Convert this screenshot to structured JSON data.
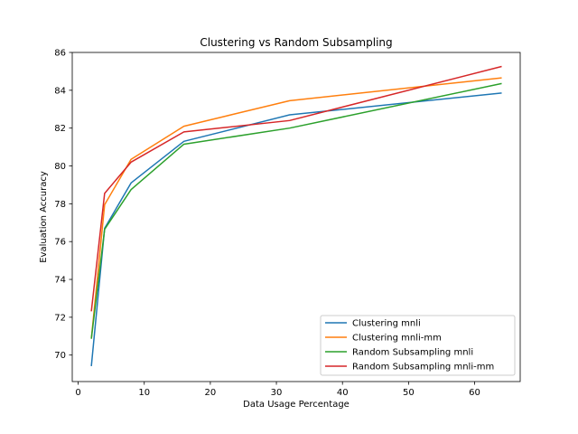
{
  "chart_data": {
    "type": "line",
    "title": "Clustering vs Random Subsampling",
    "xlabel": "Data Usage Percentage",
    "ylabel": "Evaluation Accuracy",
    "xlim": [
      -0.9,
      66.9
    ],
    "ylim": [
      68.6,
      86
    ],
    "xticks": [
      0,
      10,
      20,
      30,
      40,
      50,
      60
    ],
    "yticks": [
      70,
      72,
      74,
      76,
      78,
      80,
      82,
      84,
      86
    ],
    "grid": false,
    "legend_position": "lower right",
    "x": [
      2,
      4,
      8,
      16,
      32,
      64
    ],
    "series": [
      {
        "name": "Clustering mnli",
        "color": "#1f77b4",
        "values": [
          69.45,
          76.7,
          79.1,
          81.3,
          82.7,
          83.85
        ]
      },
      {
        "name": "Clustering mnli-mm",
        "color": "#ff7f0e",
        "values": [
          70.9,
          77.95,
          80.35,
          82.1,
          83.45,
          84.65
        ]
      },
      {
        "name": "Random Subsampling mnli",
        "color": "#2ca02c",
        "values": [
          70.9,
          76.65,
          78.75,
          81.15,
          82.0,
          84.35
        ]
      },
      {
        "name": "Random Subsampling mnli-mm",
        "color": "#d62728",
        "values": [
          72.35,
          78.55,
          80.2,
          81.8,
          82.4,
          85.25
        ]
      }
    ]
  }
}
